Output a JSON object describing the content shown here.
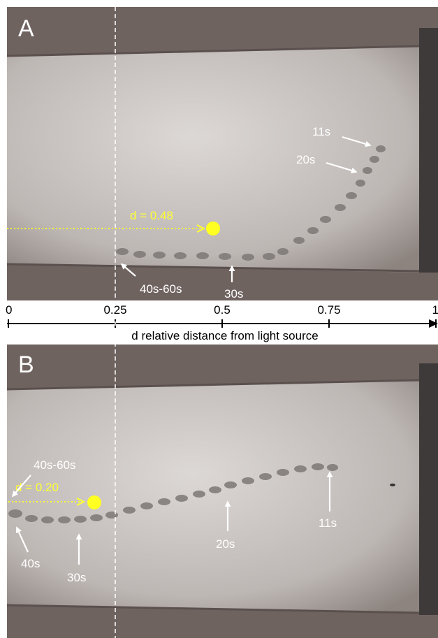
{
  "panels": [
    {
      "label": "A",
      "d_label": "d = 0.48",
      "annotations": [
        "11s",
        "20s",
        "30s",
        "40s-60s"
      ]
    },
    {
      "label": "B",
      "d_label": "d = 0.20",
      "annotations": [
        "40s-60s",
        "40s",
        "30s",
        "20s",
        "11s"
      ]
    }
  ],
  "axis": {
    "ticks": [
      0,
      0.25,
      0.5,
      0.75,
      1
    ],
    "label": "d relative distance from light source"
  }
}
